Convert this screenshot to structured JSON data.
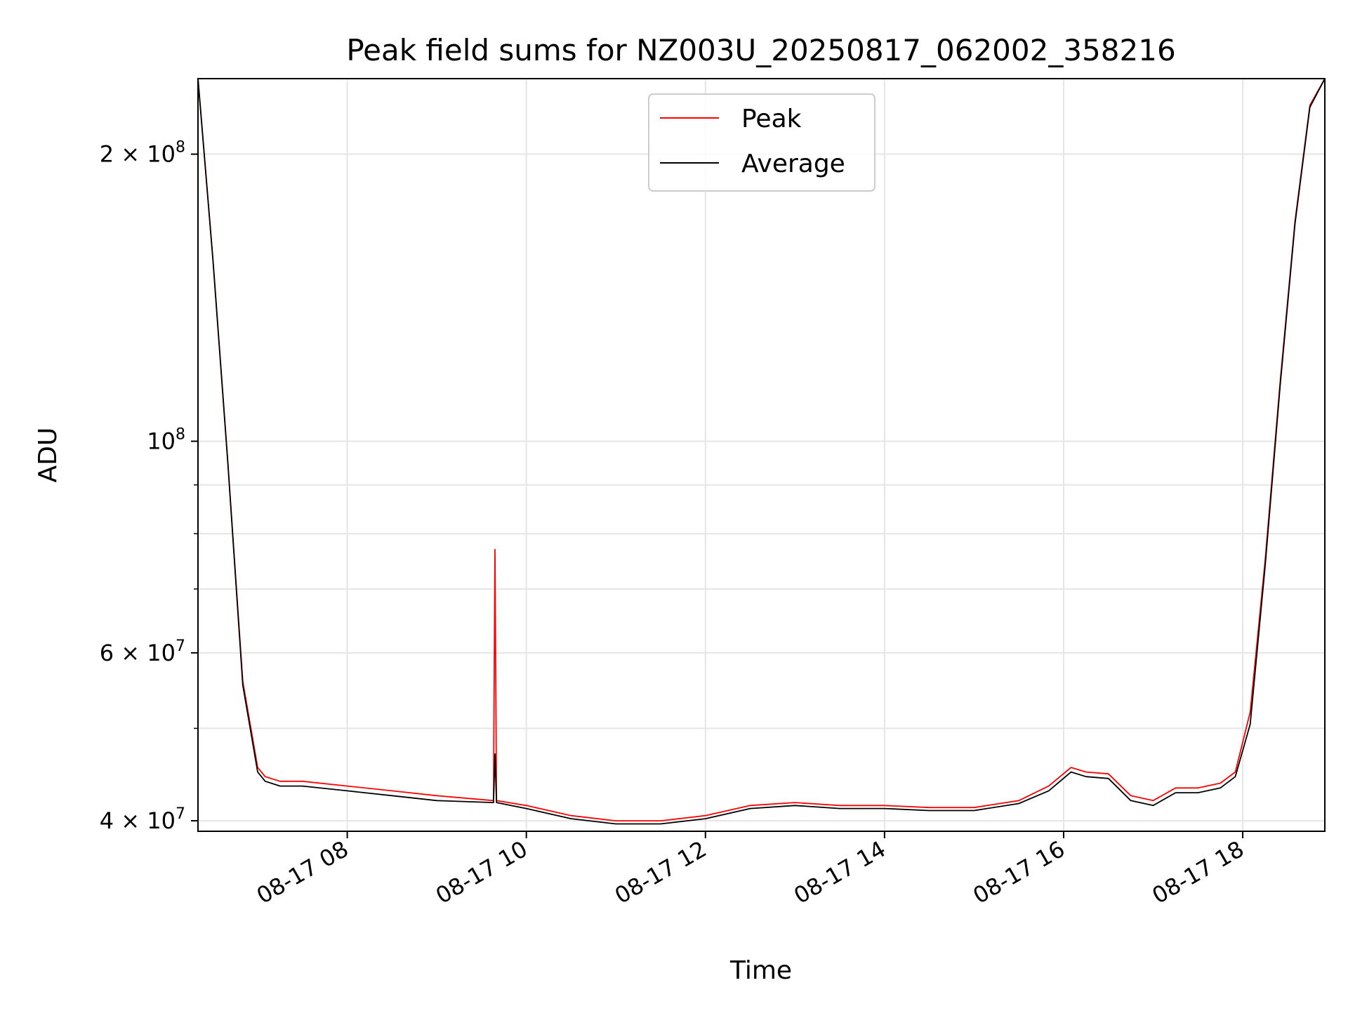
{
  "chart_data": {
    "type": "line",
    "title": "Peak field sums for NZ003U_20250817_062002_358216",
    "xlabel": "Time",
    "ylabel": "ADU",
    "yscale": "log",
    "grid": true,
    "legend_position": "upper center",
    "xlim": [
      "2025-08-17 06:20",
      "2025-08-17 18:55"
    ],
    "ylim": [
      39000000,
      240000000
    ],
    "x_ticks": [
      {
        "value": "2025-08-17 08:00",
        "label": "08-17 08"
      },
      {
        "value": "2025-08-17 10:00",
        "label": "08-17 10"
      },
      {
        "value": "2025-08-17 12:00",
        "label": "08-17 12"
      },
      {
        "value": "2025-08-17 14:00",
        "label": "08-17 14"
      },
      {
        "value": "2025-08-17 16:00",
        "label": "08-17 16"
      },
      {
        "value": "2025-08-17 18:00",
        "label": "08-17 18"
      }
    ],
    "y_ticks": [
      {
        "value": 40000000,
        "label": "4 × 10",
        "exp": "7"
      },
      {
        "value": 60000000,
        "label": "6 × 10",
        "exp": "7"
      },
      {
        "value": 100000000,
        "label": "10",
        "exp": "8"
      },
      {
        "value": 200000000,
        "label": "2 × 10",
        "exp": "8"
      }
    ],
    "y_minor_ticks": [
      50000000,
      70000000,
      80000000,
      90000000
    ],
    "series": [
      {
        "name": "Peak",
        "color": "#ff0000",
        "x": [
          "2025-08-17 06:20",
          "2025-08-17 06:30",
          "2025-08-17 06:40",
          "2025-08-17 06:50",
          "2025-08-17 07:00",
          "2025-08-17 07:05",
          "2025-08-17 07:15",
          "2025-08-17 07:30",
          "2025-08-17 08:00",
          "2025-08-17 08:30",
          "2025-08-17 09:00",
          "2025-08-17 09:38",
          "2025-08-17 09:39",
          "2025-08-17 09:40",
          "2025-08-17 10:00",
          "2025-08-17 10:30",
          "2025-08-17 11:00",
          "2025-08-17 11:30",
          "2025-08-17 12:00",
          "2025-08-17 12:30",
          "2025-08-17 13:00",
          "2025-08-17 13:30",
          "2025-08-17 14:00",
          "2025-08-17 14:30",
          "2025-08-17 15:00",
          "2025-08-17 15:30",
          "2025-08-17 15:50",
          "2025-08-17 16:05",
          "2025-08-17 16:15",
          "2025-08-17 16:30",
          "2025-08-17 16:45",
          "2025-08-17 17:00",
          "2025-08-17 17:15",
          "2025-08-17 17:30",
          "2025-08-17 17:45",
          "2025-08-17 17:55",
          "2025-08-17 18:05",
          "2025-08-17 18:15",
          "2025-08-17 18:25",
          "2025-08-17 18:35",
          "2025-08-17 18:45",
          "2025-08-17 18:55"
        ],
        "values": [
          240000000,
          155000000,
          95000000,
          56000000,
          45500000,
          44500000,
          44000000,
          44000000,
          43500000,
          43000000,
          42500000,
          42000000,
          77000000,
          42000000,
          41500000,
          40500000,
          40000000,
          40000000,
          40500000,
          41500000,
          41800000,
          41500000,
          41500000,
          41300000,
          41300000,
          42000000,
          43500000,
          45500000,
          45000000,
          44800000,
          42500000,
          42000000,
          43300000,
          43300000,
          43800000,
          45000000,
          52000000,
          75000000,
          115000000,
          170000000,
          225000000,
          240000000
        ]
      },
      {
        "name": "Average",
        "color": "#000000",
        "x": [
          "2025-08-17 06:20",
          "2025-08-17 06:30",
          "2025-08-17 06:40",
          "2025-08-17 06:50",
          "2025-08-17 07:00",
          "2025-08-17 07:05",
          "2025-08-17 07:15",
          "2025-08-17 07:30",
          "2025-08-17 08:00",
          "2025-08-17 08:30",
          "2025-08-17 09:00",
          "2025-08-17 09:38",
          "2025-08-17 09:39",
          "2025-08-17 09:40",
          "2025-08-17 10:00",
          "2025-08-17 10:30",
          "2025-08-17 11:00",
          "2025-08-17 11:30",
          "2025-08-17 12:00",
          "2025-08-17 12:30",
          "2025-08-17 13:00",
          "2025-08-17 13:30",
          "2025-08-17 14:00",
          "2025-08-17 14:30",
          "2025-08-17 15:00",
          "2025-08-17 15:30",
          "2025-08-17 15:50",
          "2025-08-17 16:05",
          "2025-08-17 16:15",
          "2025-08-17 16:30",
          "2025-08-17 16:45",
          "2025-08-17 17:00",
          "2025-08-17 17:15",
          "2025-08-17 17:30",
          "2025-08-17 17:45",
          "2025-08-17 17:55",
          "2025-08-17 18:05",
          "2025-08-17 18:15",
          "2025-08-17 18:25",
          "2025-08-17 18:35",
          "2025-08-17 18:45",
          "2025-08-17 18:55"
        ],
        "values": [
          240000000,
          155000000,
          95000000,
          55500000,
          45000000,
          44000000,
          43500000,
          43500000,
          43000000,
          42500000,
          42000000,
          41800000,
          47000000,
          41800000,
          41200000,
          40200000,
          39700000,
          39700000,
          40200000,
          41200000,
          41500000,
          41200000,
          41200000,
          41000000,
          41000000,
          41700000,
          43000000,
          45000000,
          44500000,
          44300000,
          42000000,
          41500000,
          42800000,
          42800000,
          43300000,
          44500000,
          50500000,
          74000000,
          114000000,
          169000000,
          224000000,
          240000000
        ]
      }
    ]
  }
}
